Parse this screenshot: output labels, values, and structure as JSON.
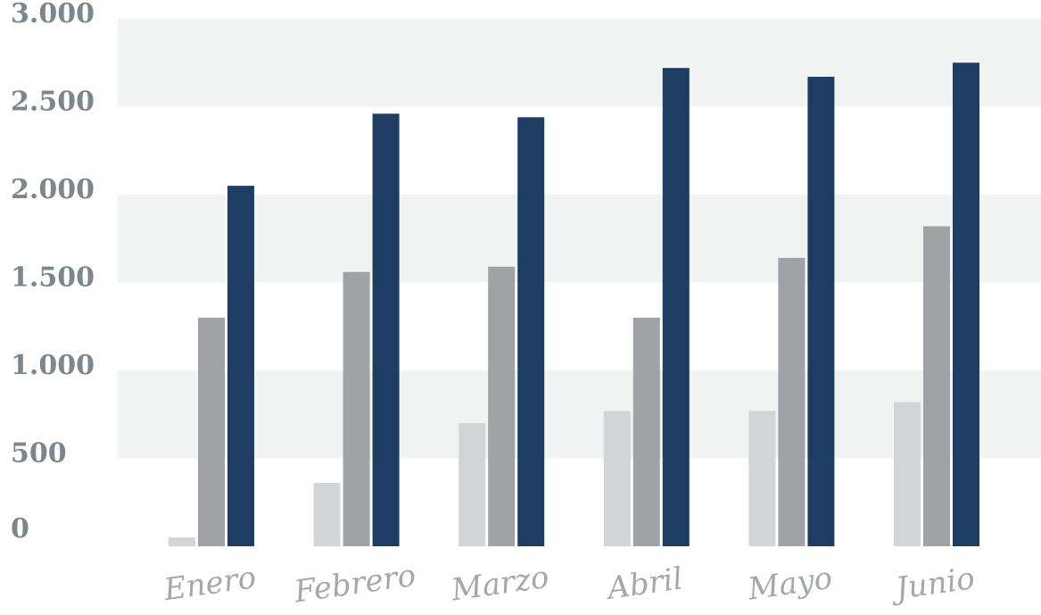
{
  "chart_data": {
    "type": "bar",
    "title": "",
    "xlabel": "",
    "ylabel": "",
    "categories": [
      "Enero",
      "Febrero",
      "Marzo",
      "Abril",
      "Mayo",
      "Junio"
    ],
    "series": [
      {
        "color": "#d3d4d6",
        "values": [
          50,
          360,
          700,
          770,
          770,
          820
        ]
      },
      {
        "color": "#a1a2a6",
        "values": [
          1300,
          1560,
          1590,
          1300,
          1640,
          1820
        ]
      },
      {
        "color": "#1d3d63",
        "values": [
          2050,
          2460,
          2440,
          2720,
          2670,
          2750
        ]
      }
    ],
    "ylim": [
      0,
      3000
    ],
    "yticks": [
      0,
      500,
      1000,
      1500,
      2000,
      2500,
      3000
    ],
    "ytick_labels": [
      "0",
      "500",
      "1.000",
      "1.500",
      "2.000",
      "2.500",
      "3.000"
    ],
    "grid": "alternating horizontal bands",
    "band_color": "#f1f3f2",
    "axis_label_color": "#7d868c",
    "category_label_color": "#a4a8ab",
    "legend": "none"
  }
}
